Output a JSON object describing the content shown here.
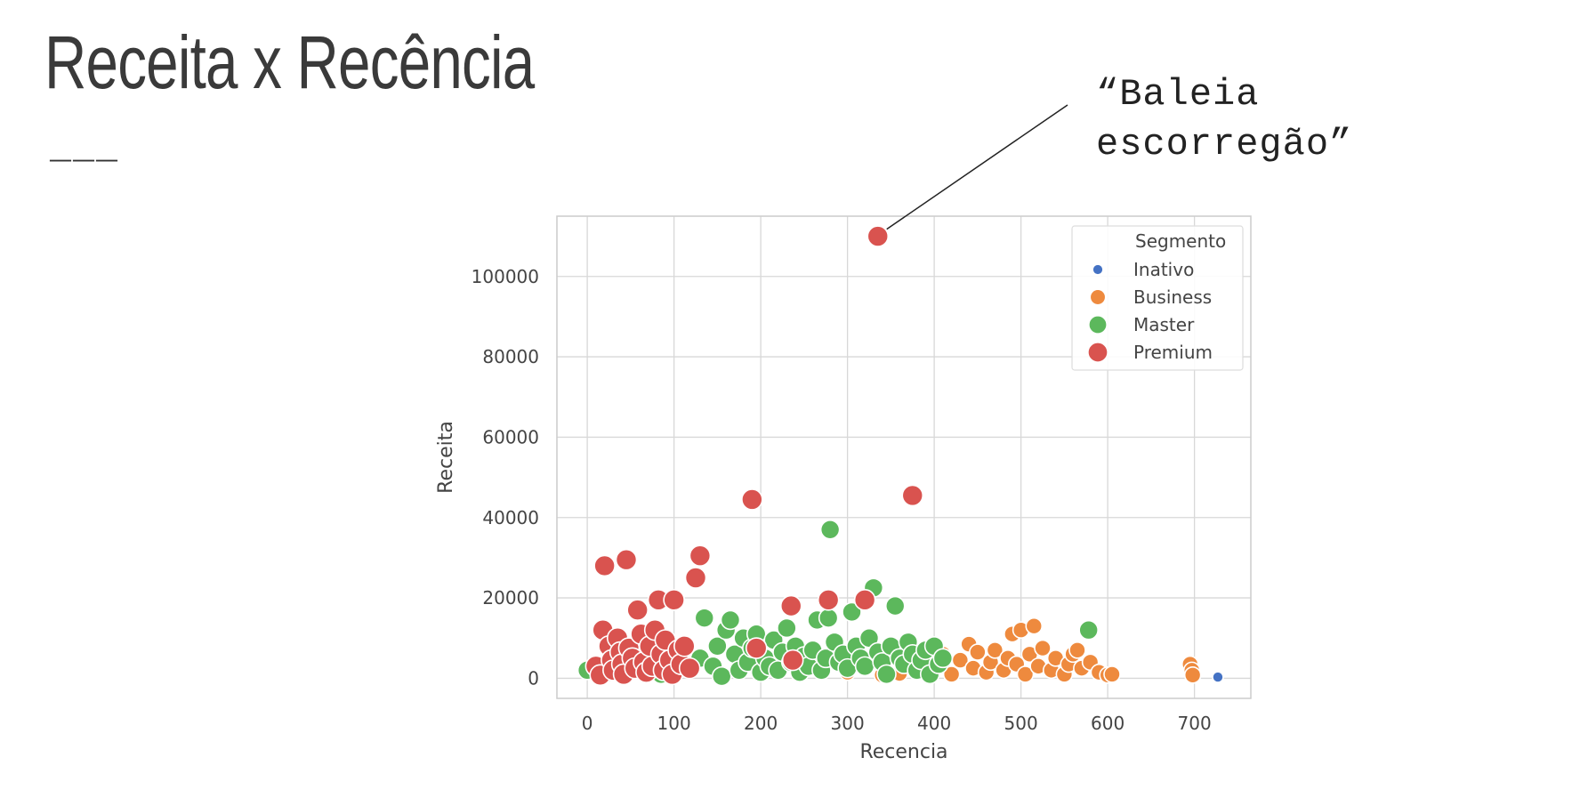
{
  "slide": {
    "title": "Receita x Recência",
    "decoration": "___",
    "callout_line1": "“Baleia",
    "callout_line2": "escorregão”"
  },
  "colors": {
    "Inativo": "#4472c4",
    "Business": "#ee8a3e",
    "Master": "#5cb85c",
    "Premium": "#d9534f",
    "grid": "#d8d8d8",
    "axis_text": "#444444"
  },
  "chart_data": {
    "type": "scatter",
    "xlabel": "Recencia",
    "ylabel": "Receita",
    "xlim": [
      -35,
      765
    ],
    "ylim": [
      -5000,
      115000
    ],
    "xticks": [
      0,
      100,
      200,
      300,
      400,
      500,
      600,
      700
    ],
    "yticks": [
      0,
      20000,
      40000,
      60000,
      80000,
      100000
    ],
    "grid": true,
    "legend_title": "Segmento",
    "legend_position": "top-right",
    "series": [
      {
        "name": "Inativo",
        "points": [
          [
            727,
            300
          ]
        ]
      },
      {
        "name": "Business",
        "points": [
          [
            300,
            1500
          ],
          [
            340,
            800
          ],
          [
            360,
            1200
          ],
          [
            380,
            2000
          ],
          [
            400,
            3000
          ],
          [
            410,
            6000
          ],
          [
            420,
            1000
          ],
          [
            430,
            4500
          ],
          [
            440,
            8500
          ],
          [
            445,
            2500
          ],
          [
            450,
            6500
          ],
          [
            460,
            1500
          ],
          [
            465,
            4000
          ],
          [
            470,
            7000
          ],
          [
            480,
            2000
          ],
          [
            485,
            5000
          ],
          [
            490,
            11000
          ],
          [
            495,
            3500
          ],
          [
            500,
            12000
          ],
          [
            505,
            1000
          ],
          [
            510,
            6000
          ],
          [
            515,
            13000
          ],
          [
            520,
            3000
          ],
          [
            525,
            7500
          ],
          [
            535,
            2000
          ],
          [
            540,
            5000
          ],
          [
            550,
            1000
          ],
          [
            555,
            3500
          ],
          [
            560,
            6000
          ],
          [
            565,
            7000
          ],
          [
            570,
            2500
          ],
          [
            580,
            4000
          ],
          [
            590,
            1500
          ],
          [
            600,
            800
          ],
          [
            605,
            1000
          ],
          [
            695,
            3500
          ],
          [
            697,
            2000
          ],
          [
            698,
            800
          ]
        ]
      },
      {
        "name": "Master",
        "points": [
          [
            0,
            2000
          ],
          [
            10,
            3000
          ],
          [
            25,
            1500
          ],
          [
            40,
            4000
          ],
          [
            55,
            2500
          ],
          [
            70,
            3500
          ],
          [
            85,
            1000
          ],
          [
            100,
            2000
          ],
          [
            115,
            3000
          ],
          [
            130,
            5000
          ],
          [
            135,
            15000
          ],
          [
            145,
            3000
          ],
          [
            150,
            8000
          ],
          [
            155,
            500
          ],
          [
            160,
            12000
          ],
          [
            165,
            14500
          ],
          [
            170,
            6000
          ],
          [
            175,
            2000
          ],
          [
            180,
            10000
          ],
          [
            185,
            4000
          ],
          [
            190,
            7500
          ],
          [
            195,
            11000
          ],
          [
            200,
            1500
          ],
          [
            205,
            5000
          ],
          [
            210,
            3000
          ],
          [
            215,
            9500
          ],
          [
            220,
            2000
          ],
          [
            225,
            6500
          ],
          [
            230,
            12500
          ],
          [
            235,
            4000
          ],
          [
            240,
            8000
          ],
          [
            245,
            1500
          ],
          [
            250,
            5500
          ],
          [
            255,
            3000
          ],
          [
            260,
            7000
          ],
          [
            265,
            14500
          ],
          [
            270,
            2000
          ],
          [
            275,
            5000
          ],
          [
            278,
            15000
          ],
          [
            280,
            37000
          ],
          [
            285,
            9000
          ],
          [
            290,
            4000
          ],
          [
            295,
            6000
          ],
          [
            300,
            2500
          ],
          [
            305,
            16500
          ],
          [
            310,
            8000
          ],
          [
            315,
            5000
          ],
          [
            320,
            3000
          ],
          [
            325,
            10000
          ],
          [
            330,
            22500
          ],
          [
            335,
            6500
          ],
          [
            340,
            4000
          ],
          [
            345,
            1000
          ],
          [
            350,
            8000
          ],
          [
            355,
            18000
          ],
          [
            360,
            5000
          ],
          [
            365,
            3500
          ],
          [
            370,
            9000
          ],
          [
            375,
            6000
          ],
          [
            380,
            2000
          ],
          [
            385,
            4500
          ],
          [
            390,
            7000
          ],
          [
            395,
            1000
          ],
          [
            400,
            8000
          ],
          [
            405,
            3500
          ],
          [
            410,
            5000
          ],
          [
            578,
            12000
          ]
        ]
      },
      {
        "name": "Premium",
        "points": [
          [
            10,
            3000
          ],
          [
            15,
            800
          ],
          [
            18,
            12000
          ],
          [
            20,
            28000
          ],
          [
            25,
            8000
          ],
          [
            28,
            4500
          ],
          [
            30,
            2000
          ],
          [
            35,
            10000
          ],
          [
            38,
            6500
          ],
          [
            40,
            3500
          ],
          [
            42,
            1000
          ],
          [
            45,
            29500
          ],
          [
            48,
            7500
          ],
          [
            52,
            5000
          ],
          [
            55,
            2500
          ],
          [
            58,
            17000
          ],
          [
            62,
            11000
          ],
          [
            65,
            4000
          ],
          [
            68,
            1500
          ],
          [
            72,
            8000
          ],
          [
            75,
            3000
          ],
          [
            78,
            12000
          ],
          [
            82,
            19500
          ],
          [
            85,
            6000
          ],
          [
            88,
            2000
          ],
          [
            90,
            9500
          ],
          [
            95,
            4500
          ],
          [
            98,
            1000
          ],
          [
            100,
            19500
          ],
          [
            105,
            7000
          ],
          [
            108,
            3500
          ],
          [
            112,
            8000
          ],
          [
            118,
            2500
          ],
          [
            125,
            25000
          ],
          [
            130,
            30500
          ],
          [
            190,
            44500
          ],
          [
            195,
            7500
          ],
          [
            235,
            18000
          ],
          [
            237,
            4500
          ],
          [
            278,
            19500
          ],
          [
            320,
            19500
          ],
          [
            335,
            110000
          ],
          [
            375,
            45500
          ]
        ]
      }
    ]
  }
}
